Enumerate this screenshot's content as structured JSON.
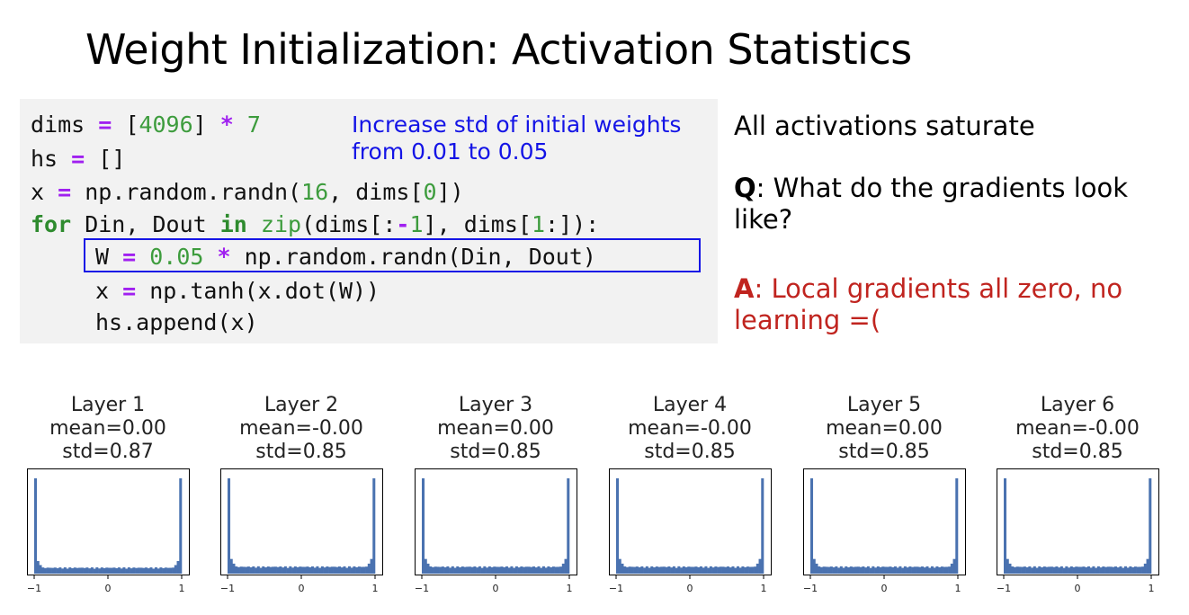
{
  "slide": {
    "title": "Weight Initialization: Activation Statistics"
  },
  "code": {
    "line1": {
      "a": "dims ",
      "op": "=",
      "b": " [",
      "num1": "4096",
      "c": "] ",
      "op2": "*",
      "d": " ",
      "num2": "7"
    },
    "line2": {
      "a": "hs ",
      "op": "=",
      "b": " []"
    },
    "line3": {
      "a": "x ",
      "op": "=",
      "b": " np.random.randn(",
      "num1": "16",
      "c": ", dims[",
      "num2": "0",
      "d": "])"
    },
    "line4": {
      "kw1": "for",
      "a": " Din, Dout ",
      "kw2": "in",
      "b": " ",
      "fn": "zip",
      "c": "(dims[:",
      "op": "-",
      "num1": "1",
      "d": "], dims[",
      "num2": "1",
      "e": ":]):"
    },
    "line5": {
      "a": "W ",
      "op": "=",
      "b": " ",
      "num": "0.05",
      "c": " ",
      "op2": "*",
      "d": " np.random.randn(Din, Dout)"
    },
    "line6": {
      "a": "x ",
      "op": "=",
      "b": " np.tanh(x.dot(W))"
    },
    "line7": {
      "a": "hs.append(x)"
    }
  },
  "note": {
    "line1": "Increase std of initial weights",
    "line2": "from 0.01 to 0.05"
  },
  "side": {
    "saturate": "All activations saturate",
    "q_label": "Q",
    "q_text": ": What do the gradients look",
    "q_text2": "like?",
    "a_label": "A",
    "a_text": ": Local gradients all zero, no",
    "a_text2": "learning =("
  },
  "colors": {
    "bar": "#4a72b0",
    "note": "#1414e6",
    "answer": "#c0241f",
    "highlight_border": "#1515e6"
  },
  "chart_data": [
    {
      "type": "bar",
      "title": "Layer 1",
      "mean": "mean=0.00",
      "std": "std=0.87",
      "xticks": [
        "−1",
        "0",
        "1"
      ],
      "xlim": [
        -1,
        1
      ],
      "edge_peak": 1.0,
      "floor": 0.06
    },
    {
      "type": "bar",
      "title": "Layer 2",
      "mean": "mean=-0.00",
      "std": "std=0.85",
      "xticks": [
        "−1",
        "0",
        "1"
      ],
      "xlim": [
        -1,
        1
      ],
      "edge_peak": 1.0,
      "floor": 0.07
    },
    {
      "type": "bar",
      "title": "Layer 3",
      "mean": "mean=0.00",
      "std": "std=0.85",
      "xticks": [
        "−1",
        "0",
        "1"
      ],
      "xlim": [
        -1,
        1
      ],
      "edge_peak": 1.0,
      "floor": 0.07
    },
    {
      "type": "bar",
      "title": "Layer 4",
      "mean": "mean=-0.00",
      "std": "std=0.85",
      "xticks": [
        "−1",
        "0",
        "1"
      ],
      "xlim": [
        -1,
        1
      ],
      "edge_peak": 1.0,
      "floor": 0.07
    },
    {
      "type": "bar",
      "title": "Layer 5",
      "mean": "mean=0.00",
      "std": "std=0.85",
      "xticks": [
        "−1",
        "0",
        "1"
      ],
      "xlim": [
        -1,
        1
      ],
      "edge_peak": 1.0,
      "floor": 0.07
    },
    {
      "type": "bar",
      "title": "Layer 6",
      "mean": "mean=-0.00",
      "std": "std=0.85",
      "xticks": [
        "−1",
        "0",
        "1"
      ],
      "xlim": [
        -1,
        1
      ],
      "edge_peak": 1.0,
      "floor": 0.07
    }
  ]
}
